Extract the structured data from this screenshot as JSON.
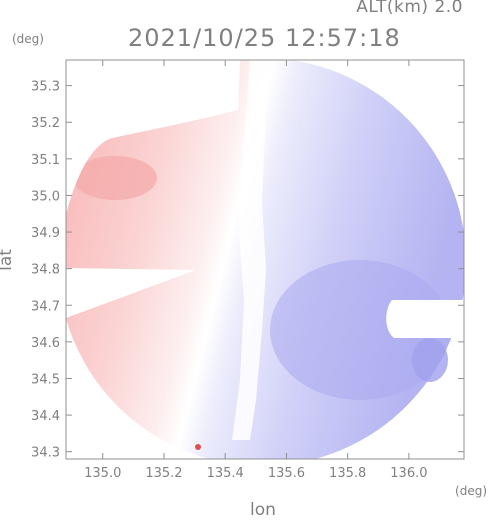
{
  "header": {
    "altitude_label": "ALT(km) 2.0",
    "timestamp": "2021/10/25 12:57:18"
  },
  "chart_data": {
    "type": "heatmap",
    "title": "2021/10/25 12:57:18",
    "xlabel": "lon",
    "ylabel": "lat",
    "x_unit": "(deg)",
    "y_unit": "(deg)",
    "xlim": [
      134.88,
      136.18
    ],
    "ylim": [
      34.28,
      35.37
    ],
    "x_ticks": [
      135.0,
      135.2,
      135.4,
      135.6,
      135.8,
      136.0
    ],
    "y_ticks": [
      34.3,
      34.4,
      34.5,
      34.6,
      34.7,
      34.8,
      34.9,
      35.0,
      35.1,
      35.2,
      35.3
    ],
    "x_tick_labels": [
      "135.0",
      "135.2",
      "135.4",
      "135.6",
      "135.8",
      "136.0"
    ],
    "y_tick_labels": [
      "34.3",
      "34.4",
      "34.5",
      "34.6",
      "34.7",
      "34.8",
      "34.9",
      "35.0",
      "35.1",
      "35.2",
      "35.3"
    ],
    "grid": false,
    "colors": {
      "positive": "#f4b0b0",
      "negative": "#b0b0f4",
      "zero": "#ffffff",
      "axis": "#909090"
    }
  }
}
